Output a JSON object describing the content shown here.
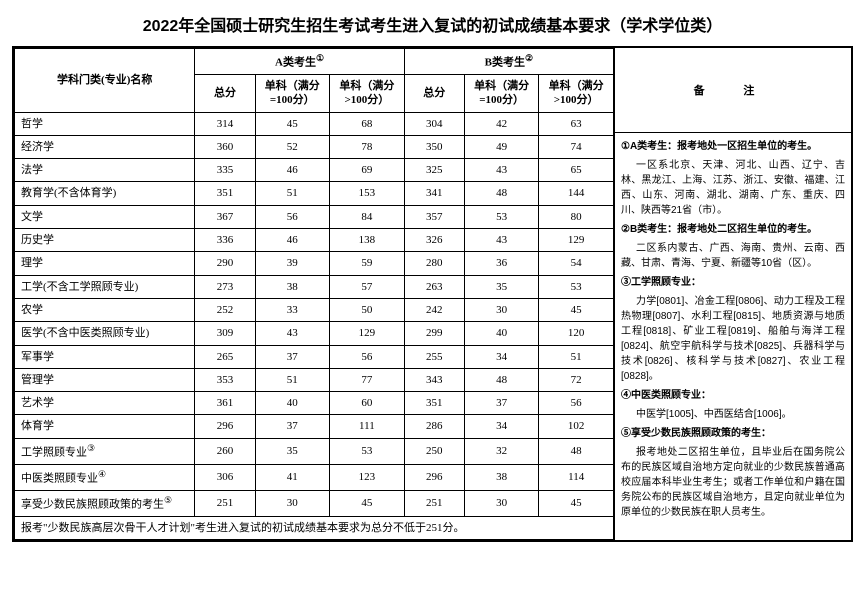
{
  "title": "2022年全国硕士研究生招生考试考生进入复试的初试成绩基本要求（学术学位类）",
  "headers": {
    "subject": "学科门类(专业)名称",
    "groupA": "A类考生",
    "groupB": "B类考生",
    "notes": "备    注",
    "total": "总分",
    "sub100": "单科（满分=100分）",
    "subOver100": "单科（满分>100分）",
    "supA": "①",
    "supB": "②"
  },
  "rows": [
    {
      "name": "哲学",
      "a": [
        314,
        45,
        68
      ],
      "b": [
        304,
        42,
        63
      ]
    },
    {
      "name": "经济学",
      "a": [
        360,
        52,
        78
      ],
      "b": [
        350,
        49,
        74
      ]
    },
    {
      "name": "法学",
      "a": [
        335,
        46,
        69
      ],
      "b": [
        325,
        43,
        65
      ]
    },
    {
      "name": "教育学(不含体育学)",
      "a": [
        351,
        51,
        153
      ],
      "b": [
        341,
        48,
        144
      ]
    },
    {
      "name": "文学",
      "a": [
        367,
        56,
        84
      ],
      "b": [
        357,
        53,
        80
      ]
    },
    {
      "name": "历史学",
      "a": [
        336,
        46,
        138
      ],
      "b": [
        326,
        43,
        129
      ]
    },
    {
      "name": "理学",
      "a": [
        290,
        39,
        59
      ],
      "b": [
        280,
        36,
        54
      ]
    },
    {
      "name": "工学(不含工学照顾专业)",
      "a": [
        273,
        38,
        57
      ],
      "b": [
        263,
        35,
        53
      ]
    },
    {
      "name": "农学",
      "a": [
        252,
        33,
        50
      ],
      "b": [
        242,
        30,
        45
      ]
    },
    {
      "name": "医学(不含中医类照顾专业)",
      "a": [
        309,
        43,
        129
      ],
      "b": [
        299,
        40,
        120
      ]
    },
    {
      "name": "军事学",
      "a": [
        265,
        37,
        56
      ],
      "b": [
        255,
        34,
        51
      ]
    },
    {
      "name": "管理学",
      "a": [
        353,
        51,
        77
      ],
      "b": [
        343,
        48,
        72
      ]
    },
    {
      "name": "艺术学",
      "a": [
        361,
        40,
        60
      ],
      "b": [
        351,
        37,
        56
      ]
    },
    {
      "name": "体育学",
      "a": [
        296,
        37,
        111
      ],
      "b": [
        286,
        34,
        102
      ]
    },
    {
      "name": "工学照顾专业",
      "sup": "③",
      "a": [
        260,
        35,
        53
      ],
      "b": [
        250,
        32,
        48
      ]
    },
    {
      "name": "中医类照顾专业",
      "sup": "④",
      "a": [
        306,
        41,
        123
      ],
      "b": [
        296,
        38,
        114
      ]
    },
    {
      "name": "享受少数民族照顾政策的考生",
      "sup": "⑤",
      "a": [
        251,
        30,
        45
      ],
      "b": [
        251,
        30,
        45
      ]
    }
  ],
  "footer": "报考\"少数民族高层次骨干人才计划\"考生进入复试的初试成绩基本要求为总分不低于251分。",
  "notes": {
    "n1t": "①A类考生：报考地处一区招生单位的考生。",
    "n1b": "一区系北京、天津、河北、山西、辽宁、吉林、黑龙江、上海、江苏、浙江、安徽、福建、江西、山东、河南、湖北、湖南、广东、重庆、四川、陕西等21省（市）。",
    "n2t": "②B类考生：报考地处二区招生单位的考生。",
    "n2b": "二区系内蒙古、广西、海南、贵州、云南、西藏、甘肃、青海、宁夏、新疆等10省（区）。",
    "n3t": "③工学照顾专业：",
    "n3b": "力学[0801]、冶金工程[0806]、动力工程及工程热物理[0807]、水利工程[0815]、地质资源与地质工程[0818]、矿业工程[0819]、船舶与海洋工程[0824]、航空宇航科学与技术[0825]、兵器科学与技术[0826]、核科学与技术[0827]、农业工程[0828]。",
    "n4t": "④中医类照顾专业：",
    "n4b": "中医学[1005]、中西医结合[1006]。",
    "n5t": "⑤享受少数民族照顾政策的考生：",
    "n5b": "报考地处二区招生单位，且毕业后在国务院公布的民族区域自治地方定向就业的少数民族普通高校应届本科毕业生考生；或者工作单位和户籍在国务院公布的民族区域自治地方，且定向就业单位为原单位的少数民族在职人员考生。"
  }
}
